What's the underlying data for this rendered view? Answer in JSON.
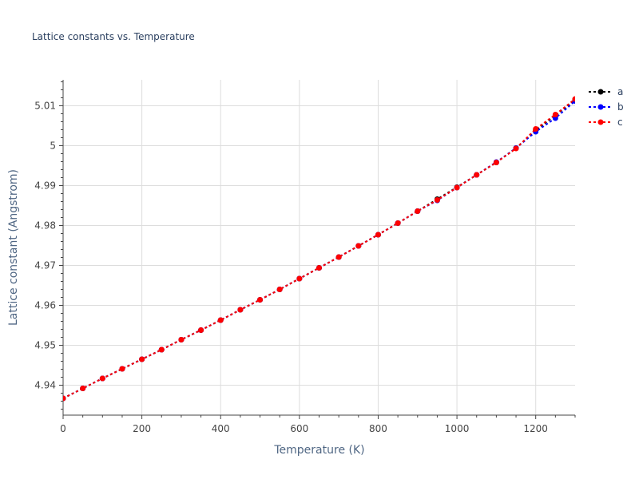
{
  "chart_data": {
    "type": "line",
    "title": "Lattice constants vs. Temperature",
    "xlabel": "Temperature (K)",
    "ylabel": "Lattice constant (Angstrom)",
    "xlim": [
      0,
      1300
    ],
    "ylim": [
      4.9325,
      5.0165
    ],
    "x_ticks": [
      0,
      200,
      400,
      600,
      800,
      1000,
      1200
    ],
    "y_ticks": [
      4.94,
      4.95,
      4.96,
      4.97,
      4.98,
      4.99,
      5,
      5.01
    ],
    "y_tick_labels": [
      "4.94",
      "4.95",
      "4.96",
      "4.97",
      "4.98",
      "4.99",
      "5",
      "5.01"
    ],
    "grid": true,
    "legend_position": "top-right",
    "x": [
      0,
      50,
      100,
      150,
      200,
      250,
      300,
      350,
      400,
      450,
      500,
      550,
      600,
      650,
      700,
      750,
      800,
      850,
      900,
      950,
      1000,
      1050,
      1100,
      1150,
      1200,
      1250,
      1300
    ],
    "series": [
      {
        "name": "a",
        "color": "#000000",
        "values": [
          4.9367,
          4.9392,
          4.9417,
          4.9441,
          4.9465,
          4.9489,
          4.9514,
          4.9538,
          4.9563,
          4.9589,
          4.9614,
          4.964,
          4.9667,
          4.9694,
          4.9721,
          4.9749,
          4.9777,
          4.9806,
          4.9836,
          4.9866,
          4.9896,
          4.9927,
          4.9958,
          4.9994,
          5.0039,
          5.0076,
          5.0116
        ]
      },
      {
        "name": "b",
        "color": "#0000ff",
        "values": [
          4.9367,
          4.9392,
          4.9417,
          4.9441,
          4.9465,
          4.9489,
          4.9514,
          4.9538,
          4.9563,
          4.9589,
          4.9614,
          4.964,
          4.9667,
          4.9694,
          4.9721,
          4.9749,
          4.9777,
          4.9806,
          4.9836,
          4.9863,
          4.9895,
          4.9927,
          4.9959,
          4.9994,
          5.0035,
          5.0069,
          5.0112
        ]
      },
      {
        "name": "c",
        "color": "#ff0000",
        "values": [
          4.9367,
          4.9392,
          4.9417,
          4.9441,
          4.9465,
          4.9489,
          4.9514,
          4.9538,
          4.9563,
          4.9589,
          4.9614,
          4.964,
          4.9667,
          4.9694,
          4.9721,
          4.9749,
          4.9777,
          4.9806,
          4.9836,
          4.9864,
          4.9895,
          4.9927,
          4.9958,
          4.9993,
          5.0042,
          5.0078,
          5.0117
        ]
      }
    ]
  }
}
